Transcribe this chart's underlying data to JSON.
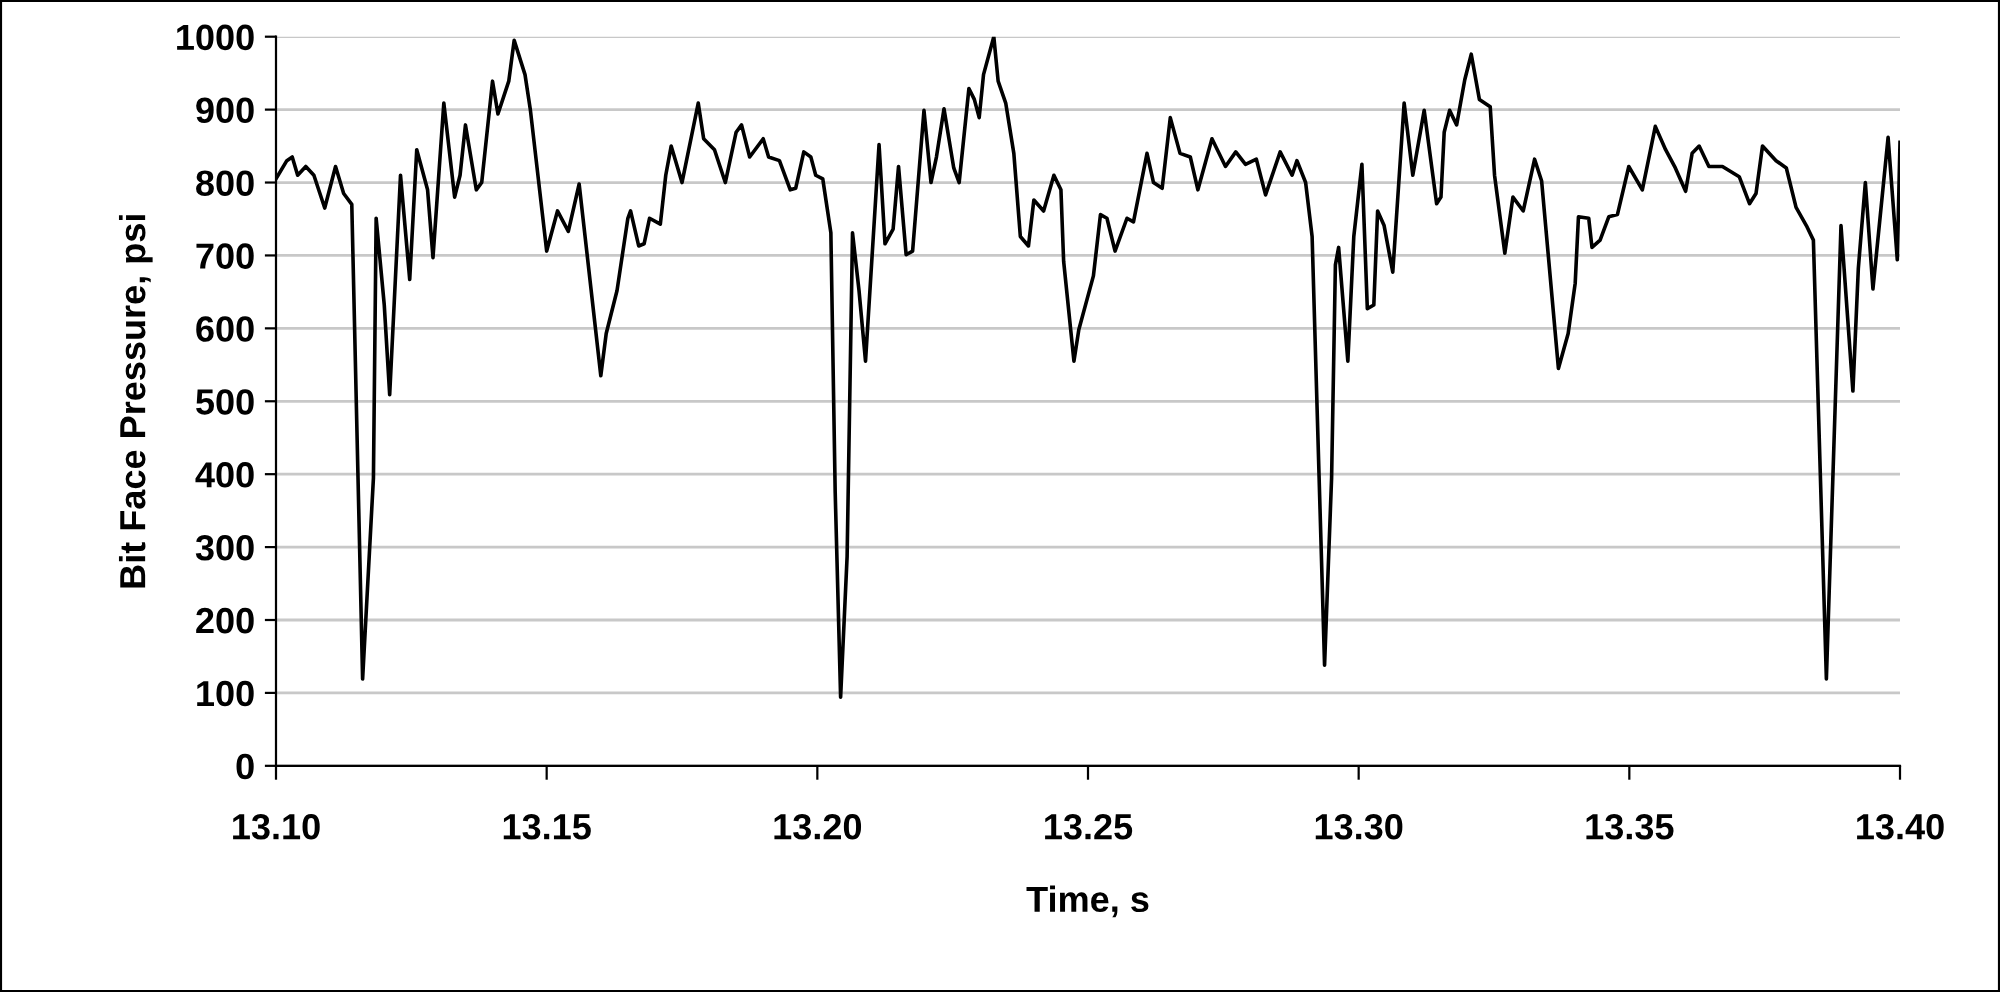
{
  "chart_data": {
    "type": "line",
    "xlabel": "Time, s",
    "ylabel": "Bit Face Pressure, psi",
    "xlim": [
      13.1,
      13.4
    ],
    "xticks": [
      {
        "value": 13.1,
        "label": "13.10"
      },
      {
        "value": 13.15,
        "label": "13.15"
      },
      {
        "value": 13.2,
        "label": "13.20"
      },
      {
        "value": 13.25,
        "label": "13.25"
      },
      {
        "value": 13.3,
        "label": "13.30"
      },
      {
        "value": 13.35,
        "label": "13.35"
      },
      {
        "value": 13.4,
        "label": "13.40"
      }
    ],
    "ylim": [
      0,
      1000
    ],
    "yticks": [
      0,
      100,
      200,
      300,
      400,
      500,
      600,
      700,
      800,
      900,
      1000
    ],
    "grid": "y",
    "marker": "none",
    "line_style": "solid",
    "series": [
      {
        "color": "#000000",
        "x": [
          13.1,
          13.102,
          13.103,
          13.104,
          13.1055,
          13.107,
          13.109,
          13.111,
          13.1125,
          13.114,
          13.116,
          13.118,
          13.1185,
          13.12,
          13.121,
          13.123,
          13.1247,
          13.126,
          13.128,
          13.129,
          13.131,
          13.133,
          13.134,
          13.135,
          13.137,
          13.138,
          13.14,
          13.141,
          13.143,
          13.144,
          13.146,
          13.147,
          13.15,
          13.152,
          13.154,
          13.156,
          13.16,
          13.161,
          13.163,
          13.165,
          13.1655,
          13.167,
          13.168,
          13.169,
          13.171,
          13.172,
          13.173,
          13.175,
          13.178,
          13.179,
          13.181,
          13.183,
          13.185,
          13.186,
          13.1875,
          13.19,
          13.191,
          13.193,
          13.195,
          13.196,
          13.1975,
          13.1988,
          13.1997,
          13.201,
          13.2025,
          13.2033,
          13.2043,
          13.2055,
          13.2065,
          13.2077,
          13.2089,
          13.2114,
          13.2125,
          13.214,
          13.215,
          13.2164,
          13.2176,
          13.2197,
          13.221,
          13.222,
          13.2234,
          13.2252,
          13.2262,
          13.228,
          13.229,
          13.2299,
          13.2307,
          13.2326,
          13.2334,
          13.2348,
          13.2363,
          13.2375,
          13.239,
          13.24,
          13.2418,
          13.2437,
          13.245,
          13.2455,
          13.2474,
          13.2483,
          13.251,
          13.2523,
          13.2535,
          13.255,
          13.2572,
          13.2584,
          13.2609,
          13.2621,
          13.2637,
          13.2652,
          13.267,
          13.2689,
          13.2703,
          13.2729,
          13.2754,
          13.2773,
          13.2791,
          13.2811,
          13.2828,
          13.2855,
          13.2877,
          13.2886,
          13.2902,
          13.2914,
          13.2937,
          13.295,
          13.2957,
          13.2963,
          13.298,
          13.2991,
          13.3006,
          13.3016,
          13.3028,
          13.3035,
          13.3047,
          13.3063,
          13.3084,
          13.31,
          13.3121,
          13.3144,
          13.3152,
          13.3158,
          13.3168,
          13.3181,
          13.3196,
          13.3208,
          13.3223,
          13.3243,
          13.3251,
          13.327,
          13.3285,
          13.3304,
          13.3325,
          13.3338,
          13.3369,
          13.3387,
          13.34,
          13.3406,
          13.3425,
          13.3431,
          13.3446,
          13.3462,
          13.3478,
          13.3499,
          13.3524,
          13.3548,
          13.3567,
          13.3585,
          13.3604,
          13.3616,
          13.3629,
          13.3647,
          13.3672,
          13.3703,
          13.3722,
          13.3734,
          13.3746,
          13.3771,
          13.379,
          13.3808,
          13.3827,
          13.384,
          13.3864,
          13.3882,
          13.3891,
          13.3913,
          13.3923,
          13.3936,
          13.395,
          13.3978,
          13.3995,
          13.4
        ],
        "values": [
          805,
          830,
          835,
          810,
          822,
          810,
          765,
          822,
          785,
          770,
          119,
          395,
          751,
          632,
          509,
          810,
          667,
          845,
          790,
          697,
          909,
          780,
          810,
          879,
          790,
          800,
          939,
          894,
          939,
          995,
          948,
          899,
          706,
          761,
          733,
          798,
          535,
          593,
          652,
          751,
          761,
          713,
          716,
          751,
          743,
          810,
          850,
          800,
          909,
          860,
          845,
          800,
          869,
          879,
          835,
          860,
          835,
          830,
          790,
          792,
          842,
          835,
          810,
          805,
          731,
          375,
          94,
          287,
          731,
          652,
          555,
          852,
          716,
          736,
          822,
          701,
          706,
          899,
          800,
          835,
          901,
          820,
          800,
          929,
          914,
          889,
          948,
          1000,
          939,
          909,
          840,
          726,
          713,
          776,
          761,
          810,
          790,
          692,
          555,
          598,
          672,
          756,
          751,
          706,
          751,
          746,
          840,
          800,
          792,
          889,
          840,
          835,
          790,
          860,
          822,
          842,
          825,
          832,
          783,
          842,
          810,
          830,
          800,
          726,
          138,
          395,
          687,
          711,
          555,
          726,
          825,
          627,
          632,
          761,
          741,
          677,
          909,
          810,
          899,
          771,
          780,
          869,
          899,
          879,
          941,
          976,
          914,
          904,
          810,
          703,
          780,
          761,
          832,
          802,
          545,
          593,
          662,
          753,
          751,
          711,
          721,
          753,
          756,
          822,
          790,
          877,
          845,
          820,
          788,
          840,
          850,
          822,
          822,
          808,
          771,
          785,
          850,
          830,
          820,
          766,
          741,
          721,
          119,
          534,
          741,
          514,
          682,
          800,
          654,
          862,
          694,
          855
        ]
      }
    ]
  }
}
